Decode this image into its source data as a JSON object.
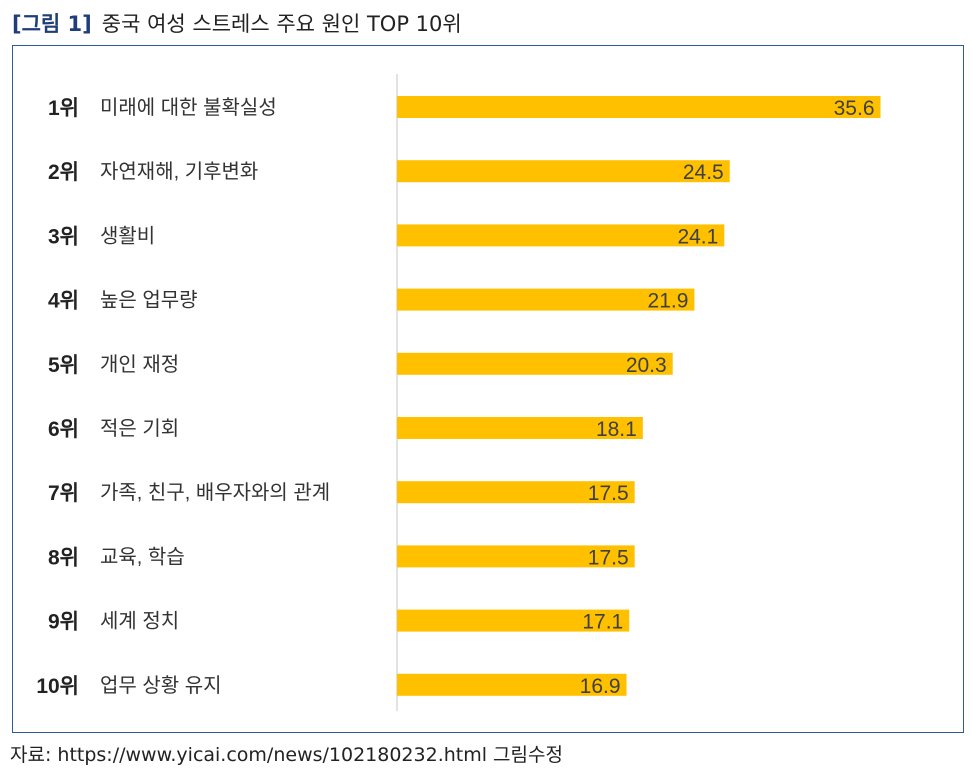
{
  "title": {
    "figure_no": "[그림 1]",
    "text": "중국 여성 스트레스 주요 원인 TOP 10위"
  },
  "source": "자료: https://www.yicai.com/news/102180232.html 그림수정",
  "colors": {
    "bar": "#FFC000",
    "axis": "#d9d9d9",
    "frame": "#2d5aa0",
    "title_accent": "#1f3d7a"
  },
  "chart_data": {
    "type": "bar",
    "orientation": "horizontal",
    "title": "중국 여성 스트레스 주요 원인 TOP 10위",
    "xlabel": "",
    "ylabel": "",
    "xlim": [
      0,
      36
    ],
    "grid": false,
    "legend": "none",
    "ranks": [
      "1위",
      "2위",
      "3위",
      "4위",
      "5위",
      "6위",
      "7위",
      "8위",
      "9위",
      "10위"
    ],
    "categories": [
      "미래에 대한 불확실성",
      "자연재해, 기후변화",
      "생활비",
      "높은 업무량",
      "개인 재정",
      "적은 기회",
      "가족, 친구, 배우자와의 관계",
      "교육, 학습",
      "세계 정치",
      "업무 상황 유지"
    ],
    "values": [
      35.6,
      24.5,
      24.1,
      21.9,
      20.3,
      18.1,
      17.5,
      17.5,
      17.1,
      16.9
    ],
    "value_labels": [
      "35.6",
      "24.5",
      "24.1",
      "21.9",
      "20.3",
      "18.1",
      "17.5",
      "17.5",
      "17.1",
      "16.9"
    ]
  }
}
